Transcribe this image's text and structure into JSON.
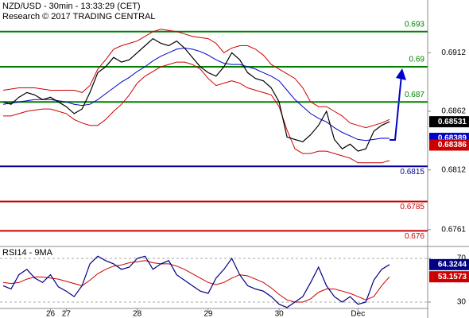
{
  "chart_data": [
    {
      "type": "line",
      "title": "NZD/USD - 30min - 13:33:29 (CET)",
      "subtitle": "Research © 2017 TRADING CENTRAL",
      "categories": [
        null,
        null,
        null,
        null,
        null,
        null,
        "26",
        null,
        "27",
        null,
        null,
        null,
        null,
        null,
        null,
        null,
        null,
        "28",
        null,
        null,
        null,
        null,
        null,
        null,
        null,
        null,
        "29",
        null,
        null,
        null,
        null,
        null,
        null,
        null,
        null,
        "30",
        null,
        null,
        null,
        null,
        null,
        null,
        null,
        null,
        null,
        "Dec",
        null,
        null,
        null,
        null
      ],
      "series": [
        {
          "color": "#000000",
          "values": [
            0.687,
            0.6868,
            0.6874,
            0.6878,
            0.6876,
            0.6872,
            0.6874,
            0.687,
            0.6866,
            0.686,
            0.6864,
            0.6878,
            0.6895,
            0.69,
            0.6908,
            0.6904,
            0.6906,
            0.6912,
            0.6918,
            0.6924,
            0.692,
            0.6918,
            0.6922,
            0.6916,
            0.6908,
            0.69,
            0.6895,
            0.6892,
            0.69,
            0.6912,
            0.6906,
            0.6895,
            0.689,
            0.6888,
            0.6882,
            0.687,
            0.684,
            0.6838,
            0.6836,
            0.6842,
            0.685,
            0.6862,
            0.6838,
            0.683,
            0.6834,
            0.6828,
            0.683,
            0.6845,
            0.685,
            0.68531
          ]
        },
        {
          "color": "#0000cc",
          "values": [
            0.6868,
            0.6869,
            0.687,
            0.6871,
            0.6872,
            0.6872,
            0.6872,
            0.6871,
            0.687,
            0.6868,
            0.6867,
            0.6868,
            0.6872,
            0.6877,
            0.6882,
            0.6887,
            0.6891,
            0.6896,
            0.69,
            0.6905,
            0.6909,
            0.6912,
            0.6915,
            0.6916,
            0.6915,
            0.6913,
            0.691,
            0.6906,
            0.6903,
            0.6902,
            0.6902,
            0.69,
            0.6898,
            0.6895,
            0.6892,
            0.6888,
            0.688,
            0.6872,
            0.6866,
            0.686,
            0.6856,
            0.6853,
            0.6848,
            0.6844,
            0.6841,
            0.6838,
            0.6837,
            0.6838,
            0.6839,
            0.68389
          ]
        },
        {
          "color": "#cc0000",
          "values": [
            0.688,
            0.6881,
            0.6882,
            0.6882,
            0.6882,
            0.6881,
            0.688,
            0.688,
            0.688,
            0.688,
            0.6878,
            0.6884,
            0.6898,
            0.6906,
            0.6915,
            0.6918,
            0.692,
            0.6922,
            0.6926,
            0.693,
            0.6932,
            0.6931,
            0.693,
            0.6928,
            0.6926,
            0.6925,
            0.6924,
            0.692,
            0.6912,
            0.6916,
            0.6918,
            0.6918,
            0.6915,
            0.691,
            0.6902,
            0.6898,
            0.6894,
            0.689,
            0.6882,
            0.687,
            0.6866,
            0.6866,
            0.6862,
            0.6858,
            0.6852,
            0.685,
            0.6848,
            0.685,
            0.6852,
            0.6855
          ]
        },
        {
          "color": "#cc0000",
          "values": [
            0.6858,
            0.6858,
            0.686,
            0.6862,
            0.6863,
            0.6864,
            0.6864,
            0.6862,
            0.686,
            0.6855,
            0.6852,
            0.685,
            0.685,
            0.6855,
            0.6862,
            0.6868,
            0.6876,
            0.6886,
            0.6892,
            0.6896,
            0.69,
            0.6902,
            0.6904,
            0.6904,
            0.6902,
            0.6898,
            0.689,
            0.6884,
            0.6886,
            0.6888,
            0.6886,
            0.6882,
            0.688,
            0.6878,
            0.6876,
            0.6866,
            0.6846,
            0.683,
            0.6826,
            0.6826,
            0.6828,
            0.6828,
            0.6826,
            0.6824,
            0.6822,
            0.6818,
            0.6818,
            0.6818,
            0.6818,
            0.682
          ]
        }
      ],
      "ylim": [
        0.6748,
        0.6957
      ],
      "yticks": [
        0.6912,
        0.6862,
        0.6812,
        0.6761
      ],
      "levels": [
        {
          "value": 0.693,
          "color": "#008000"
        },
        {
          "value": 0.69,
          "color": "#008000"
        },
        {
          "value": 0.687,
          "color": "#008000"
        },
        {
          "value": 0.6815,
          "color": "#000099"
        },
        {
          "value": 0.6785,
          "color": "#cc0000"
        },
        {
          "value": 0.676,
          "color": "#cc0000"
        }
      ],
      "markers": [
        {
          "value": 0.68386,
          "color": "#cc0000"
        }
      ]
    },
    {
      "type": "line",
      "title": "RSI14 - 9MA",
      "series": [
        {
          "color": "#000080",
          "values": [
            45,
            42,
            55,
            60,
            52,
            48,
            55,
            44,
            40,
            35,
            45,
            65,
            72,
            68,
            65,
            60,
            62,
            70,
            72,
            60,
            65,
            68,
            55,
            50,
            45,
            40,
            38,
            52,
            60,
            70,
            55,
            45,
            42,
            40,
            35,
            28,
            25,
            30,
            35,
            48,
            62,
            45,
            35,
            30,
            35,
            28,
            30,
            50,
            60,
            64.3244
          ]
        },
        {
          "color": "#cc0000",
          "values": [
            48,
            47,
            48,
            51,
            53,
            53,
            52,
            51,
            49,
            47,
            45,
            50,
            56,
            60,
            63,
            64,
            66,
            67,
            68,
            66,
            65,
            65,
            63,
            60,
            56,
            52,
            48,
            46,
            48,
            52,
            55,
            54,
            51,
            48,
            43,
            37,
            32,
            30,
            30,
            33,
            39,
            42,
            42,
            40,
            38,
            35,
            32,
            35,
            45,
            53.1573
          ]
        }
      ],
      "ylim": [
        22.7,
        79.5
      ],
      "yticks": [
        70,
        30
      ]
    }
  ]
}
